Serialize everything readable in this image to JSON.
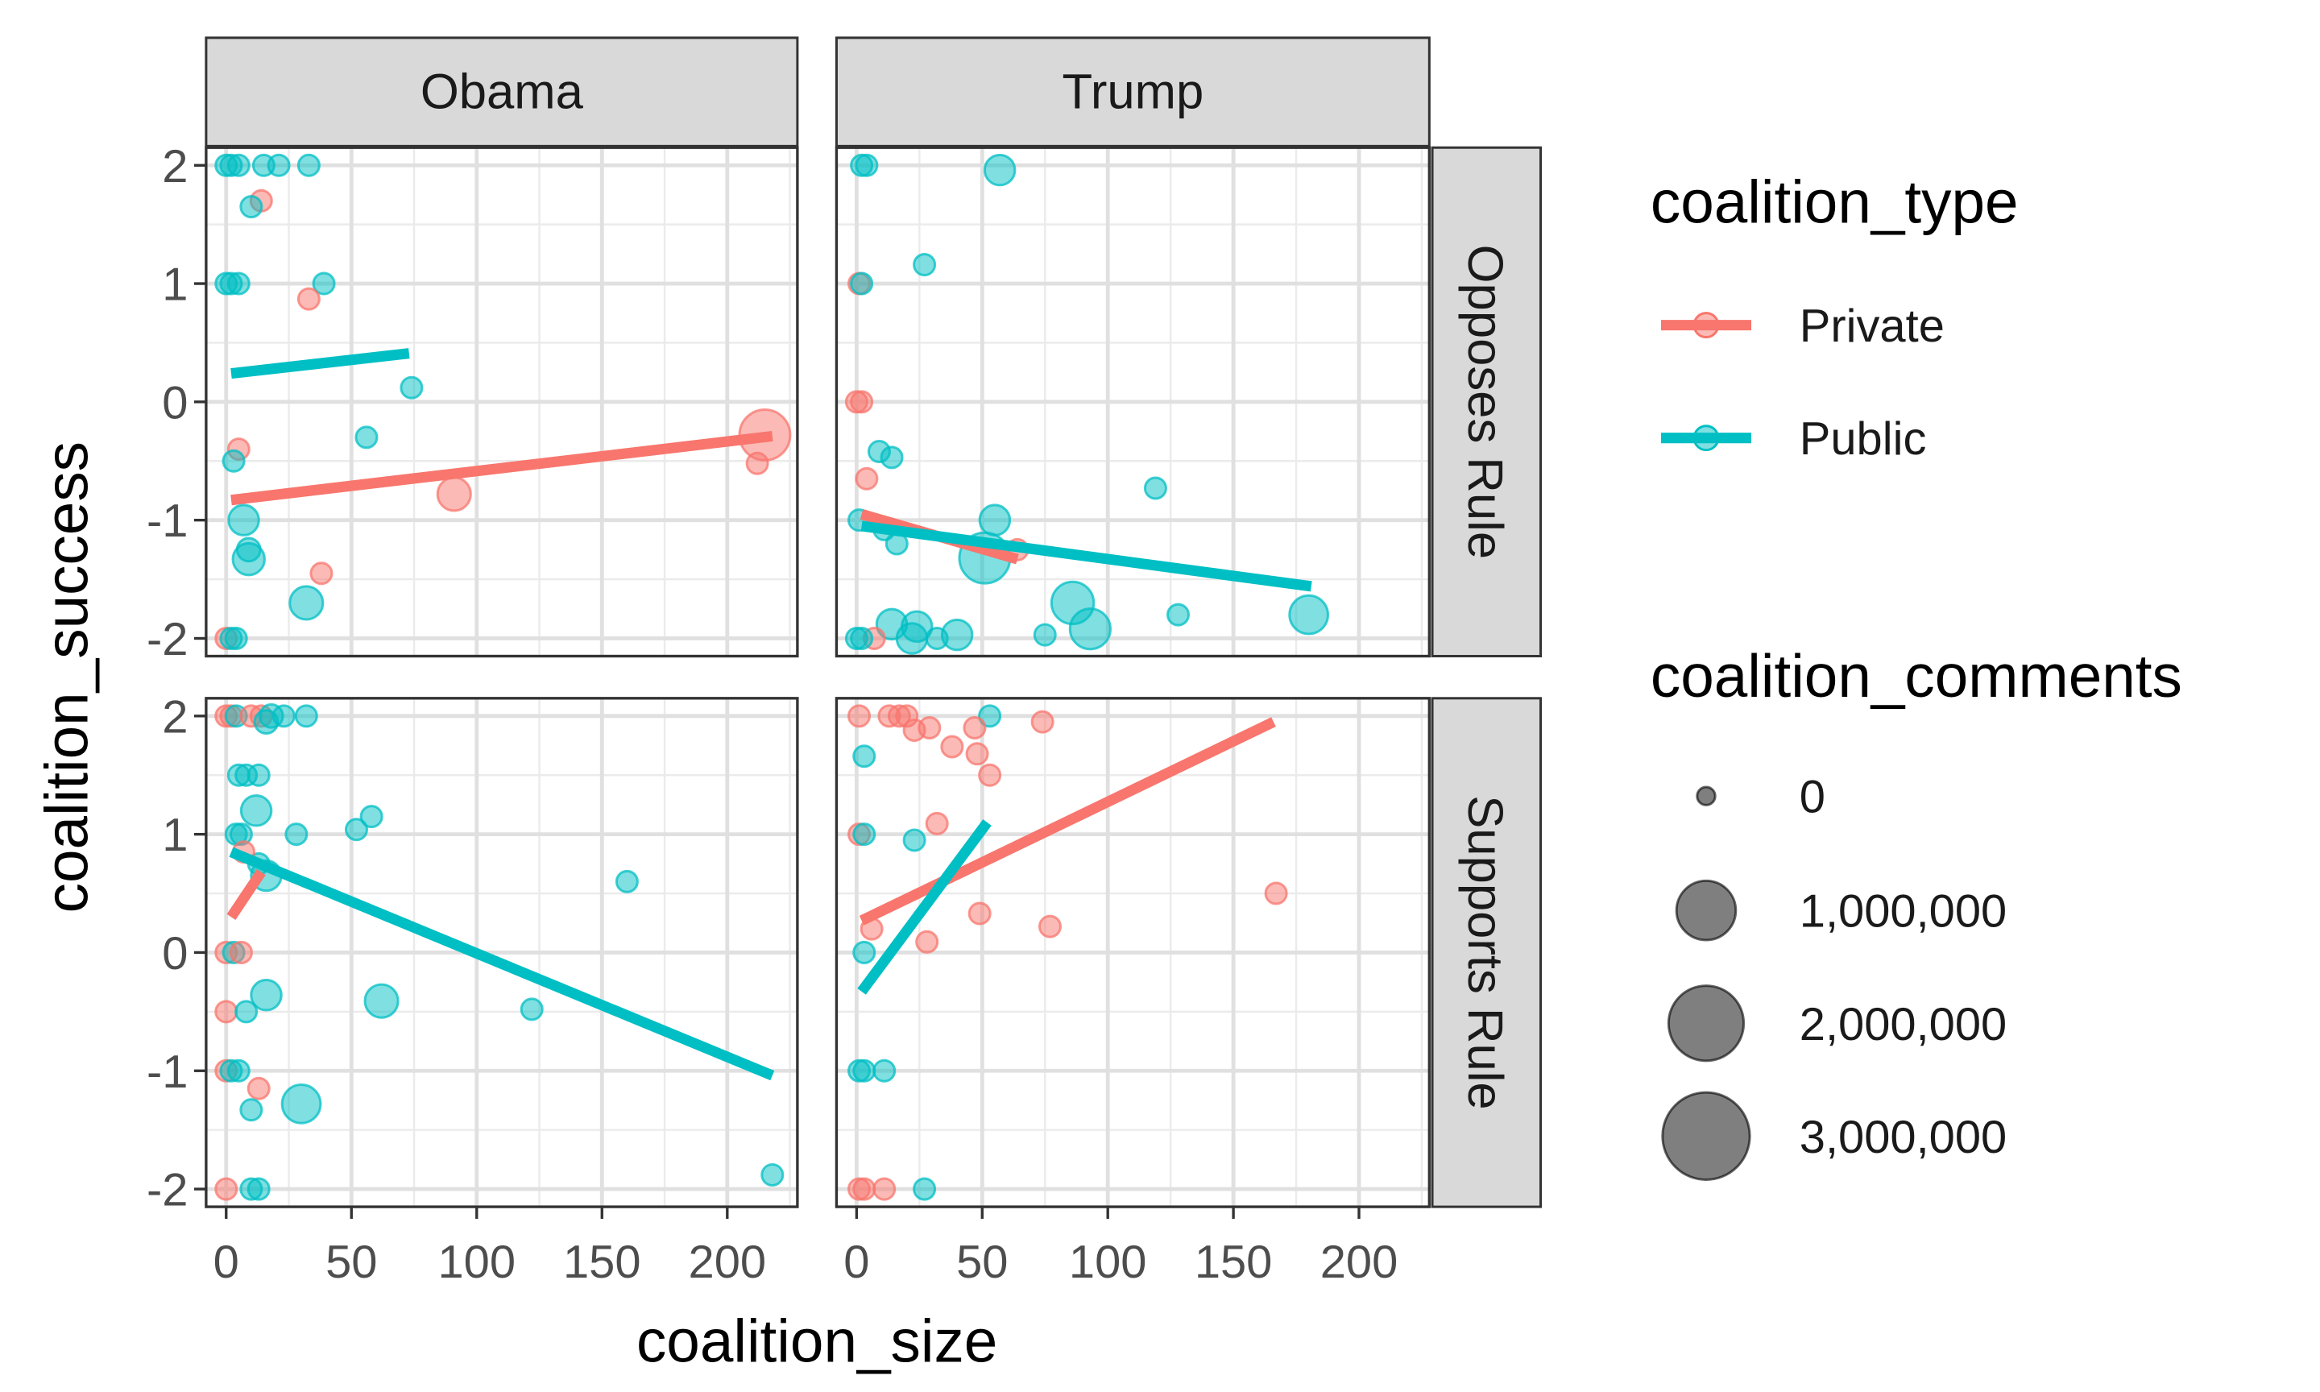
{
  "chart_data": {
    "type": "scatter",
    "xlabel": "coalition_size",
    "ylabel": "coalition_success",
    "xlim": [
      -8,
      228
    ],
    "ylim": [
      -2.15,
      2.15
    ],
    "x_ticks": [
      0,
      50,
      100,
      150,
      200
    ],
    "x_tick_labels": [
      "0",
      "50",
      "100",
      "150",
      "200"
    ],
    "y_ticks": [
      2,
      1,
      0,
      -1,
      -2
    ],
    "y_tick_labels": [
      "2",
      "1",
      "0",
      "-1",
      "-2"
    ],
    "grid": true,
    "legend_position": "right",
    "facet_columns": [
      "Obama",
      "Trump"
    ],
    "facet_rows": [
      "Opposes Rule",
      "Supports Rule"
    ],
    "colors": {
      "Private": "#F8766D",
      "Public": "#00BFC4"
    },
    "color_legend": {
      "title": "coalition_type",
      "entries": [
        {
          "label": "Private",
          "color": "#F8766D"
        },
        {
          "label": "Public",
          "color": "#00BFC4"
        }
      ]
    },
    "size_legend": {
      "title": "coalition_comments",
      "entries": [
        {
          "label": "0",
          "value": 0
        },
        {
          "label": "1,000,000",
          "value": 1000000
        },
        {
          "label": "2,000,000",
          "value": 2000000
        },
        {
          "label": "3,000,000",
          "value": 3000000
        }
      ]
    },
    "panels": [
      {
        "col": "Obama",
        "row": "Opposes Rule",
        "points": [
          {
            "x": 0,
            "y": 2,
            "t": "Public",
            "c": 60000
          },
          {
            "x": 2,
            "y": 2,
            "t": "Public",
            "c": 60000
          },
          {
            "x": 5,
            "y": 2,
            "t": "Public",
            "c": 60000
          },
          {
            "x": 15,
            "y": 2,
            "t": "Public",
            "c": 60000
          },
          {
            "x": 21,
            "y": 2,
            "t": "Public",
            "c": 60000
          },
          {
            "x": 33,
            "y": 2,
            "t": "Public",
            "c": 60000
          },
          {
            "x": 14,
            "y": 1.7,
            "t": "Private",
            "c": 60000
          },
          {
            "x": 10,
            "y": 1.65,
            "t": "Public",
            "c": 60000
          },
          {
            "x": 0,
            "y": 1,
            "t": "Public",
            "c": 60000
          },
          {
            "x": 2,
            "y": 1,
            "t": "Public",
            "c": 60000
          },
          {
            "x": 5,
            "y": 1,
            "t": "Public",
            "c": 60000
          },
          {
            "x": 39,
            "y": 1,
            "t": "Public",
            "c": 60000
          },
          {
            "x": 33,
            "y": 0.87,
            "t": "Private",
            "c": 60000
          },
          {
            "x": 74,
            "y": 0.12,
            "t": "Public",
            "c": 60000
          },
          {
            "x": 56,
            "y": -0.3,
            "t": "Public",
            "c": 60000
          },
          {
            "x": 215,
            "y": -0.28,
            "t": "Private",
            "c": 2600000
          },
          {
            "x": 212,
            "y": -0.52,
            "t": "Private",
            "c": 60000
          },
          {
            "x": 5,
            "y": -0.4,
            "t": "Private",
            "c": 60000
          },
          {
            "x": 3,
            "y": -0.5,
            "t": "Public",
            "c": 60000
          },
          {
            "x": 91,
            "y": -0.78,
            "t": "Private",
            "c": 650000
          },
          {
            "x": 7,
            "y": -1,
            "t": "Public",
            "c": 450000
          },
          {
            "x": 9,
            "y": -1.25,
            "t": "Public",
            "c": 120000
          },
          {
            "x": 9,
            "y": -1.33,
            "t": "Public",
            "c": 550000
          },
          {
            "x": 38,
            "y": -1.45,
            "t": "Private",
            "c": 60000
          },
          {
            "x": 32,
            "y": -1.7,
            "t": "Public",
            "c": 650000
          },
          {
            "x": 0,
            "y": -2,
            "t": "Private",
            "c": 60000
          },
          {
            "x": 2,
            "y": -2,
            "t": "Public",
            "c": 60000
          },
          {
            "x": 4,
            "y": -2,
            "t": "Public",
            "c": 60000
          }
        ],
        "lines": [
          {
            "t": "Public",
            "x1": 2,
            "y1": 0.24,
            "x2": 73,
            "y2": 0.41
          },
          {
            "t": "Private",
            "x1": 2,
            "y1": -0.83,
            "x2": 218,
            "y2": -0.29
          }
        ]
      },
      {
        "col": "Trump",
        "row": "Opposes Rule",
        "points": [
          {
            "x": 2,
            "y": 2,
            "t": "Public",
            "c": 60000
          },
          {
            "x": 4,
            "y": 2,
            "t": "Public",
            "c": 60000
          },
          {
            "x": 57,
            "y": 1.96,
            "t": "Public",
            "c": 450000
          },
          {
            "x": 27,
            "y": 1.16,
            "t": "Public",
            "c": 60000
          },
          {
            "x": 1,
            "y": 1,
            "t": "Private",
            "c": 60000
          },
          {
            "x": 2,
            "y": 1,
            "t": "Public",
            "c": 60000
          },
          {
            "x": 0,
            "y": 0,
            "t": "Private",
            "c": 60000
          },
          {
            "x": 2,
            "y": 0,
            "t": "Private",
            "c": 60000
          },
          {
            "x": 9,
            "y": -0.42,
            "t": "Public",
            "c": 60000
          },
          {
            "x": 14,
            "y": -0.47,
            "t": "Public",
            "c": 60000
          },
          {
            "x": 4,
            "y": -0.65,
            "t": "Private",
            "c": 60000
          },
          {
            "x": 119,
            "y": -0.73,
            "t": "Public",
            "c": 60000
          },
          {
            "x": 1,
            "y": -1,
            "t": "Public",
            "c": 60000
          },
          {
            "x": 55,
            "y": -1,
            "t": "Public",
            "c": 450000
          },
          {
            "x": 11,
            "y": -1.08,
            "t": "Public",
            "c": 60000
          },
          {
            "x": 16,
            "y": -1.2,
            "t": "Public",
            "c": 60000
          },
          {
            "x": 64,
            "y": -1.25,
            "t": "Private",
            "c": 60000
          },
          {
            "x": 51,
            "y": -1.32,
            "t": "Public",
            "c": 2600000
          },
          {
            "x": 86,
            "y": -1.7,
            "t": "Public",
            "c": 1500000
          },
          {
            "x": 93,
            "y": -1.92,
            "t": "Public",
            "c": 1300000
          },
          {
            "x": 180,
            "y": -1.8,
            "t": "Public",
            "c": 1100000
          },
          {
            "x": 128,
            "y": -1.8,
            "t": "Public",
            "c": 60000
          },
          {
            "x": 14,
            "y": -1.88,
            "t": "Public",
            "c": 450000
          },
          {
            "x": 24,
            "y": -1.9,
            "t": "Public",
            "c": 450000
          },
          {
            "x": 22,
            "y": -2,
            "t": "Public",
            "c": 450000
          },
          {
            "x": 40,
            "y": -1.97,
            "t": "Public",
            "c": 450000
          },
          {
            "x": 32,
            "y": -2,
            "t": "Public",
            "c": 60000
          },
          {
            "x": 75,
            "y": -1.97,
            "t": "Public",
            "c": 60000
          },
          {
            "x": 7,
            "y": -2,
            "t": "Private",
            "c": 60000
          },
          {
            "x": 0,
            "y": -2,
            "t": "Public",
            "c": 60000
          },
          {
            "x": 2,
            "y": -2,
            "t": "Public",
            "c": 60000
          }
        ],
        "lines": [
          {
            "t": "Private",
            "x1": 2,
            "y1": -0.95,
            "x2": 64,
            "y2": -1.33
          },
          {
            "t": "Public",
            "x1": 2,
            "y1": -1.05,
            "x2": 181,
            "y2": -1.56
          }
        ]
      },
      {
        "col": "Obama",
        "row": "Supports Rule",
        "points": [
          {
            "x": 0,
            "y": 2,
            "t": "Private",
            "c": 60000
          },
          {
            "x": 2,
            "y": 2,
            "t": "Private",
            "c": 60000
          },
          {
            "x": 4,
            "y": 2,
            "t": "Public",
            "c": 60000
          },
          {
            "x": 10,
            "y": 2,
            "t": "Private",
            "c": 60000
          },
          {
            "x": 14,
            "y": 2,
            "t": "Private",
            "c": 60000
          },
          {
            "x": 18,
            "y": 2,
            "t": "Public",
            "c": 120000
          },
          {
            "x": 32,
            "y": 2,
            "t": "Public",
            "c": 60000
          },
          {
            "x": 16,
            "y": 1.95,
            "t": "Public",
            "c": 120000
          },
          {
            "x": 23,
            "y": 2,
            "t": "Public",
            "c": 60000
          },
          {
            "x": 5,
            "y": 1.5,
            "t": "Public",
            "c": 60000
          },
          {
            "x": 8,
            "y": 1.5,
            "t": "Public",
            "c": 60000
          },
          {
            "x": 13,
            "y": 1.5,
            "t": "Public",
            "c": 60000
          },
          {
            "x": 12,
            "y": 1.2,
            "t": "Public",
            "c": 450000
          },
          {
            "x": 58,
            "y": 1.15,
            "t": "Public",
            "c": 60000
          },
          {
            "x": 4,
            "y": 1,
            "t": "Public",
            "c": 60000
          },
          {
            "x": 6,
            "y": 1,
            "t": "Public",
            "c": 60000
          },
          {
            "x": 28,
            "y": 1,
            "t": "Public",
            "c": 60000
          },
          {
            "x": 52,
            "y": 1.04,
            "t": "Public",
            "c": 60000
          },
          {
            "x": 160,
            "y": 0.6,
            "t": "Public",
            "c": 60000
          },
          {
            "x": 16,
            "y": 0.65,
            "t": "Public",
            "c": 450000
          },
          {
            "x": 13,
            "y": 0.75,
            "t": "Public",
            "c": 60000
          },
          {
            "x": 7,
            "y": 0.85,
            "t": "Private",
            "c": 60000
          },
          {
            "x": 0,
            "y": 0,
            "t": "Private",
            "c": 60000
          },
          {
            "x": 3,
            "y": 0,
            "t": "Public",
            "c": 60000
          },
          {
            "x": 6,
            "y": 0,
            "t": "Private",
            "c": 60000
          },
          {
            "x": 16,
            "y": -0.36,
            "t": "Public",
            "c": 450000
          },
          {
            "x": 62,
            "y": -0.41,
            "t": "Public",
            "c": 650000
          },
          {
            "x": 122,
            "y": -0.48,
            "t": "Public",
            "c": 60000
          },
          {
            "x": 0,
            "y": -0.5,
            "t": "Private",
            "c": 60000
          },
          {
            "x": 8,
            "y": -0.5,
            "t": "Public",
            "c": 60000
          },
          {
            "x": 0,
            "y": -1,
            "t": "Private",
            "c": 60000
          },
          {
            "x": 2,
            "y": -1,
            "t": "Public",
            "c": 60000
          },
          {
            "x": 5,
            "y": -1,
            "t": "Public",
            "c": 60000
          },
          {
            "x": 13,
            "y": -1.15,
            "t": "Private",
            "c": 60000
          },
          {
            "x": 30,
            "y": -1.28,
            "t": "Public",
            "c": 1100000
          },
          {
            "x": 10,
            "y": -1.33,
            "t": "Public",
            "c": 60000
          },
          {
            "x": 0,
            "y": -2,
            "t": "Private",
            "c": 60000
          },
          {
            "x": 10,
            "y": -2,
            "t": "Public",
            "c": 60000
          },
          {
            "x": 13,
            "y": -2,
            "t": "Public",
            "c": 60000
          },
          {
            "x": 218,
            "y": -1.88,
            "t": "Public",
            "c": 60000
          }
        ],
        "lines": [
          {
            "t": "Private",
            "x1": 2,
            "y1": 0.3,
            "x2": 14,
            "y2": 0.68
          },
          {
            "t": "Public",
            "x1": 2,
            "y1": 0.85,
            "x2": 218,
            "y2": -1.04
          }
        ]
      },
      {
        "col": "Trump",
        "row": "Supports Rule",
        "points": [
          {
            "x": 1,
            "y": 2,
            "t": "Private",
            "c": 60000
          },
          {
            "x": 13,
            "y": 2,
            "t": "Private",
            "c": 60000
          },
          {
            "x": 17,
            "y": 2,
            "t": "Private",
            "c": 60000
          },
          {
            "x": 20,
            "y": 2,
            "t": "Private",
            "c": 60000
          },
          {
            "x": 53,
            "y": 2,
            "t": "Public",
            "c": 60000
          },
          {
            "x": 74,
            "y": 1.95,
            "t": "Private",
            "c": 60000
          },
          {
            "x": 29,
            "y": 1.9,
            "t": "Private",
            "c": 60000
          },
          {
            "x": 47,
            "y": 1.9,
            "t": "Private",
            "c": 60000
          },
          {
            "x": 23,
            "y": 1.88,
            "t": "Private",
            "c": 60000
          },
          {
            "x": 38,
            "y": 1.74,
            "t": "Private",
            "c": 60000
          },
          {
            "x": 48,
            "y": 1.68,
            "t": "Private",
            "c": 60000
          },
          {
            "x": 3,
            "y": 1.66,
            "t": "Public",
            "c": 60000
          },
          {
            "x": 53,
            "y": 1.5,
            "t": "Private",
            "c": 60000
          },
          {
            "x": 32,
            "y": 1.09,
            "t": "Private",
            "c": 60000
          },
          {
            "x": 23,
            "y": 0.95,
            "t": "Public",
            "c": 60000
          },
          {
            "x": 1,
            "y": 1,
            "t": "Private",
            "c": 60000
          },
          {
            "x": 3,
            "y": 1,
            "t": "Public",
            "c": 60000
          },
          {
            "x": 167,
            "y": 0.5,
            "t": "Private",
            "c": 60000
          },
          {
            "x": 49,
            "y": 0.33,
            "t": "Private",
            "c": 60000
          },
          {
            "x": 77,
            "y": 0.22,
            "t": "Private",
            "c": 60000
          },
          {
            "x": 6,
            "y": 0.2,
            "t": "Private",
            "c": 60000
          },
          {
            "x": 28,
            "y": 0.09,
            "t": "Private",
            "c": 60000
          },
          {
            "x": 3,
            "y": 0,
            "t": "Public",
            "c": 60000
          },
          {
            "x": 1,
            "y": -1,
            "t": "Public",
            "c": 60000
          },
          {
            "x": 3,
            "y": -1,
            "t": "Public",
            "c": 60000
          },
          {
            "x": 11,
            "y": -1,
            "t": "Public",
            "c": 60000
          },
          {
            "x": 1,
            "y": -2,
            "t": "Private",
            "c": 60000
          },
          {
            "x": 3,
            "y": -2,
            "t": "Private",
            "c": 60000
          },
          {
            "x": 11,
            "y": -2,
            "t": "Private",
            "c": 60000
          },
          {
            "x": 27,
            "y": -2,
            "t": "Public",
            "c": 60000
          }
        ],
        "lines": [
          {
            "t": "Private",
            "x1": 2,
            "y1": 0.27,
            "x2": 166,
            "y2": 1.95
          },
          {
            "t": "Public",
            "x1": 2,
            "y1": -0.33,
            "x2": 52,
            "y2": 1.1
          }
        ]
      }
    ]
  }
}
